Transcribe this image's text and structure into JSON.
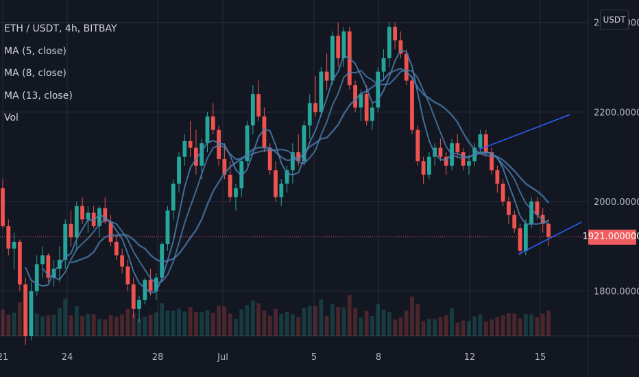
{
  "header": {
    "symbol": "ETH / USDT, 4h, BITBAY",
    "indicators": [
      "MA (5, close)",
      "MA (8, close)",
      "MA (13, close)",
      "Vol"
    ]
  },
  "price_axis": {
    "currency_label": "USDT",
    "current_price_label": "1921.000000"
  },
  "colors": {
    "background": "#131722",
    "grid": "#2a2e39",
    "up": "#26a69a",
    "down": "#ef5350",
    "ma": "#4a7fb0",
    "trendline": "#2962ff",
    "price_tag": "#f05d5e"
  },
  "chart_data": {
    "type": "candlestick",
    "title": "ETH / USDT, 4h, BITBAY",
    "ylim": [
      1700,
      2450
    ],
    "y_ticks": [
      1800,
      2000,
      2200,
      2400
    ],
    "y_tick_labels": [
      "1800.000000",
      "2000.000000",
      "2200.000000",
      "2400.000000"
    ],
    "x_tick_labels": [
      "21",
      "24",
      "28",
      "Jul",
      "5",
      "8",
      "12",
      "15"
    ],
    "last_price": 1921,
    "ohlc": [
      [
        2030,
        2050,
        1940,
        1945
      ],
      [
        1945,
        1960,
        1880,
        1895
      ],
      [
        1895,
        1930,
        1850,
        1910
      ],
      [
        1910,
        1915,
        1800,
        1815
      ],
      [
        1815,
        1830,
        1680,
        1700
      ],
      [
        1700,
        1820,
        1690,
        1800
      ],
      [
        1800,
        1880,
        1790,
        1860
      ],
      [
        1860,
        1900,
        1830,
        1880
      ],
      [
        1880,
        1885,
        1820,
        1830
      ],
      [
        1830,
        1870,
        1810,
        1850
      ],
      [
        1850,
        1900,
        1820,
        1870
      ],
      [
        1870,
        1960,
        1850,
        1950
      ],
      [
        1950,
        1980,
        1900,
        1920
      ],
      [
        1920,
        2000,
        1890,
        1990
      ],
      [
        1990,
        2010,
        1950,
        1960
      ],
      [
        1960,
        1990,
        1930,
        1975
      ],
      [
        1975,
        1990,
        1940,
        1945
      ],
      [
        1945,
        1990,
        1920,
        1985
      ],
      [
        1985,
        2010,
        1950,
        1955
      ],
      [
        1955,
        1970,
        1900,
        1910
      ],
      [
        1910,
        1925,
        1870,
        1880
      ],
      [
        1880,
        1895,
        1840,
        1855
      ],
      [
        1855,
        1870,
        1800,
        1815
      ],
      [
        1815,
        1830,
        1740,
        1760
      ],
      [
        1760,
        1790,
        1730,
        1780
      ],
      [
        1780,
        1830,
        1770,
        1825
      ],
      [
        1825,
        1850,
        1790,
        1800
      ],
      [
        1800,
        1840,
        1780,
        1830
      ],
      [
        1830,
        1910,
        1820,
        1905
      ],
      [
        1905,
        1990,
        1890,
        1980
      ],
      [
        1980,
        2050,
        1960,
        2040
      ],
      [
        2040,
        2110,
        2020,
        2100
      ],
      [
        2100,
        2150,
        2080,
        2135
      ],
      [
        2135,
        2180,
        2100,
        2120
      ],
      [
        2120,
        2160,
        2060,
        2080
      ],
      [
        2080,
        2140,
        2050,
        2130
      ],
      [
        2130,
        2200,
        2110,
        2190
      ],
      [
        2190,
        2220,
        2150,
        2160
      ],
      [
        2160,
        2170,
        2080,
        2095
      ],
      [
        2095,
        2130,
        2050,
        2060
      ],
      [
        2060,
        2090,
        2000,
        2010
      ],
      [
        2010,
        2040,
        1980,
        2030
      ],
      [
        2030,
        2100,
        2010,
        2090
      ],
      [
        2090,
        2180,
        2080,
        2170
      ],
      [
        2170,
        2260,
        2150,
        2240
      ],
      [
        2240,
        2270,
        2180,
        2190
      ],
      [
        2190,
        2210,
        2110,
        2120
      ],
      [
        2120,
        2130,
        2060,
        2070
      ],
      [
        2070,
        2090,
        2000,
        2010
      ],
      [
        2010,
        2050,
        1990,
        2040
      ],
      [
        2040,
        2080,
        2020,
        2070
      ],
      [
        2070,
        2130,
        2040,
        2110
      ],
      [
        2110,
        2150,
        2080,
        2090
      ],
      [
        2090,
        2180,
        2080,
        2170
      ],
      [
        2170,
        2240,
        2140,
        2220
      ],
      [
        2220,
        2280,
        2190,
        2200
      ],
      [
        2200,
        2300,
        2190,
        2290
      ],
      [
        2290,
        2330,
        2250,
        2270
      ],
      [
        2270,
        2380,
        2260,
        2370
      ],
      [
        2370,
        2400,
        2300,
        2320
      ],
      [
        2320,
        2390,
        2300,
        2380
      ],
      [
        2380,
        2390,
        2250,
        2260
      ],
      [
        2260,
        2270,
        2200,
        2210
      ],
      [
        2210,
        2250,
        2180,
        2240
      ],
      [
        2240,
        2260,
        2170,
        2180
      ],
      [
        2180,
        2220,
        2160,
        2210
      ],
      [
        2210,
        2300,
        2200,
        2290
      ],
      [
        2290,
        2340,
        2270,
        2320
      ],
      [
        2320,
        2400,
        2300,
        2390
      ],
      [
        2390,
        2400,
        2340,
        2360
      ],
      [
        2360,
        2380,
        2320,
        2330
      ],
      [
        2330,
        2340,
        2260,
        2270
      ],
      [
        2270,
        2280,
        2150,
        2160
      ],
      [
        2160,
        2170,
        2080,
        2090
      ],
      [
        2090,
        2100,
        2040,
        2060
      ],
      [
        2060,
        2110,
        2050,
        2100
      ],
      [
        2100,
        2130,
        2080,
        2120
      ],
      [
        2120,
        2140,
        2090,
        2100
      ],
      [
        2100,
        2110,
        2060,
        2080
      ],
      [
        2080,
        2140,
        2070,
        2130
      ],
      [
        2130,
        2150,
        2100,
        2110
      ],
      [
        2110,
        2120,
        2070,
        2080
      ],
      [
        2080,
        2100,
        2060,
        2090
      ],
      [
        2090,
        2130,
        2080,
        2120
      ],
      [
        2120,
        2160,
        2110,
        2150
      ],
      [
        2150,
        2160,
        2100,
        2110
      ],
      [
        2110,
        2120,
        2060,
        2070
      ],
      [
        2070,
        2080,
        2020,
        2040
      ],
      [
        2040,
        2050,
        1990,
        2000
      ],
      [
        2000,
        2010,
        1950,
        1970
      ],
      [
        1970,
        1980,
        1930,
        1940
      ],
      [
        1940,
        1950,
        1880,
        1890
      ],
      [
        1890,
        1960,
        1880,
        1950
      ],
      [
        1950,
        2010,
        1940,
        2000
      ],
      [
        2000,
        2010,
        1960,
        1970
      ],
      [
        1970,
        1985,
        1930,
        1950
      ],
      [
        1950,
        1960,
        1900,
        1921
      ]
    ],
    "moving_averages": [
      {
        "name": "MA (5, close)",
        "period": 5
      },
      {
        "name": "MA (8, close)",
        "period": 8
      },
      {
        "name": "MA (13, close)",
        "period": 13
      }
    ],
    "trendlines": [
      {
        "x1": 0.7493,
        "y1": 2116,
        "x2": 0.8918,
        "y2": 2194
      },
      {
        "x1": 0.8111,
        "y1": 1882,
        "x2": 0.9098,
        "y2": 1954
      }
    ],
    "grid": true
  }
}
